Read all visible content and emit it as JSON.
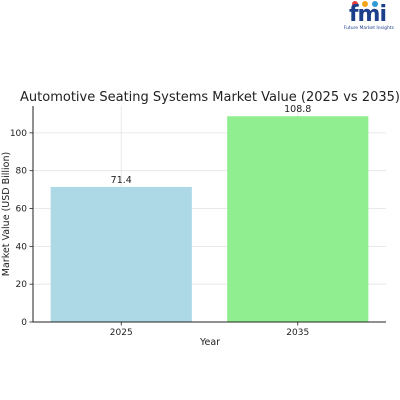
{
  "logo": {
    "text": "fmi",
    "tagline": "Future Market Insights",
    "dot_colors": [
      "#e23b3b",
      "#f2a51a",
      "#2e9bd6"
    ]
  },
  "chart_data": {
    "type": "bar",
    "title": "Automotive Seating Systems Market Value (2025 vs 2035)",
    "xlabel": "Year",
    "ylabel": "Market Value (USD Billion)",
    "categories": [
      "2025",
      "2035"
    ],
    "values": [
      71.4,
      108.8
    ],
    "data_labels": [
      "71.4",
      "108.8"
    ],
    "bar_colors": [
      "#add8e6",
      "#90ee90"
    ],
    "ylim": [
      0,
      114.2
    ],
    "yticks": [
      0,
      20,
      40,
      60,
      80,
      100
    ],
    "grid": true,
    "legend": "none"
  }
}
